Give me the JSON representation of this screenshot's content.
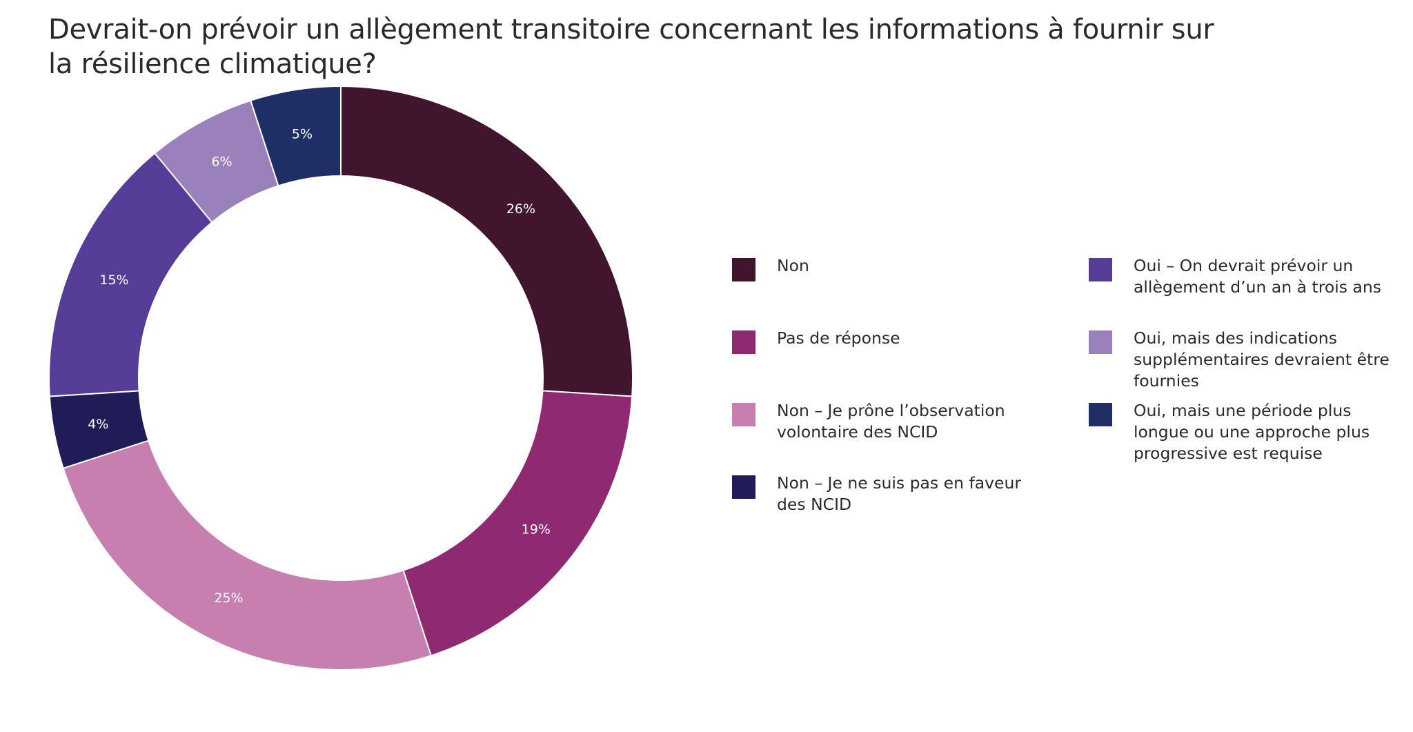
{
  "title": "Devrait-on prévoir un allègement transitoire concernant les informations à fournir sur la résilience climatique?",
  "chart_data": {
    "type": "pie",
    "subtype": "donut",
    "title": "Devrait-on prévoir un allègement transitoire concernant les informations à fournir sur la résilience climatique?",
    "start_angle_deg": 0,
    "direction": "clockwise",
    "categories": [
      "Non",
      "Pas de réponse",
      "Non – Je prône l’observation volontaire des NCID",
      "Non – Je ne suis pas en faveur des NCID",
      "Oui – On devrait prévoir un allègement d’un an à trois ans",
      "Oui, mais des indications supplémentaires devraient être fournies",
      "Oui, mais une période plus longue ou une approche plus progressive est requise"
    ],
    "values": [
      26,
      19,
      25,
      4,
      15,
      6,
      5
    ],
    "labels": [
      "26%",
      "19%",
      "25%",
      "4%",
      "15%",
      "6%",
      "5%"
    ],
    "colors": [
      "#41152d",
      "#8f2a72",
      "#c67faf",
      "#201c58",
      "#553c97",
      "#9a81bb",
      "#1f2e64"
    ],
    "unit": "%",
    "legend_position": "right"
  },
  "legend": {
    "items": [
      {
        "label_lines": [
          "Non"
        ],
        "color": "#41152d"
      },
      {
        "label_lines": [
          "Pas de réponse"
        ],
        "color": "#8f2a72"
      },
      {
        "label_lines": [
          "Non – Je prône l’observation",
          "volontaire des NCID"
        ],
        "color": "#c67faf"
      },
      {
        "label_lines": [
          "Non – Je ne suis pas en faveur",
          "des NCID"
        ],
        "color": "#201c58"
      },
      {
        "label_lines": [
          "Oui – On devrait prévoir un",
          "allègement d’un an à trois ans"
        ],
        "color": "#553c97"
      },
      {
        "label_lines": [
          "Oui, mais des indications",
          "supplémentaires devraient être",
          "fournies"
        ],
        "color": "#9a81bb"
      },
      {
        "label_lines": [
          "Oui, mais une période plus",
          "longue ou une approche plus",
          "progressive est requise"
        ],
        "color": "#1f2e64"
      }
    ]
  }
}
